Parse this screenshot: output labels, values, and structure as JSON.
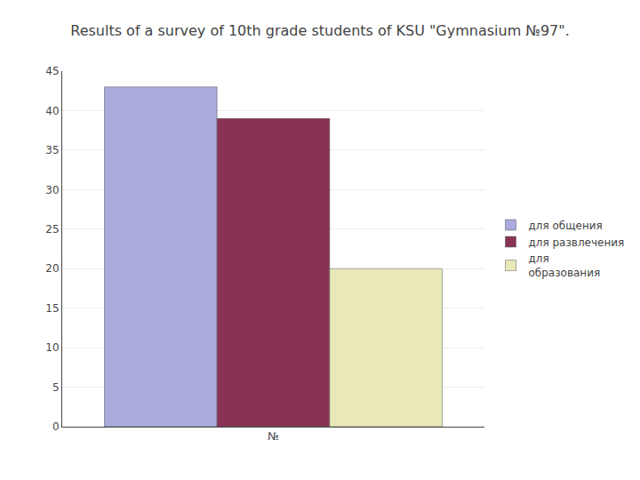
{
  "chart_data": {
    "type": "bar",
    "title": "Results of a survey of 10th grade students of KSU \"Gymnasium №97\".",
    "categories": [
      "№"
    ],
    "series": [
      {
        "name": "для общения",
        "color": "#aaaadd",
        "values": [
          43
        ]
      },
      {
        "name": "для развлечения",
        "color": "#883355",
        "values": [
          39
        ]
      },
      {
        "name": "для\nобразования",
        "color": "#e8e8b8",
        "values": [
          20
        ]
      }
    ],
    "ylim": [
      0,
      45
    ],
    "yticks": [
      0,
      5,
      10,
      15,
      20,
      25,
      30,
      35,
      40,
      45
    ],
    "grid": true,
    "legend": "right"
  }
}
